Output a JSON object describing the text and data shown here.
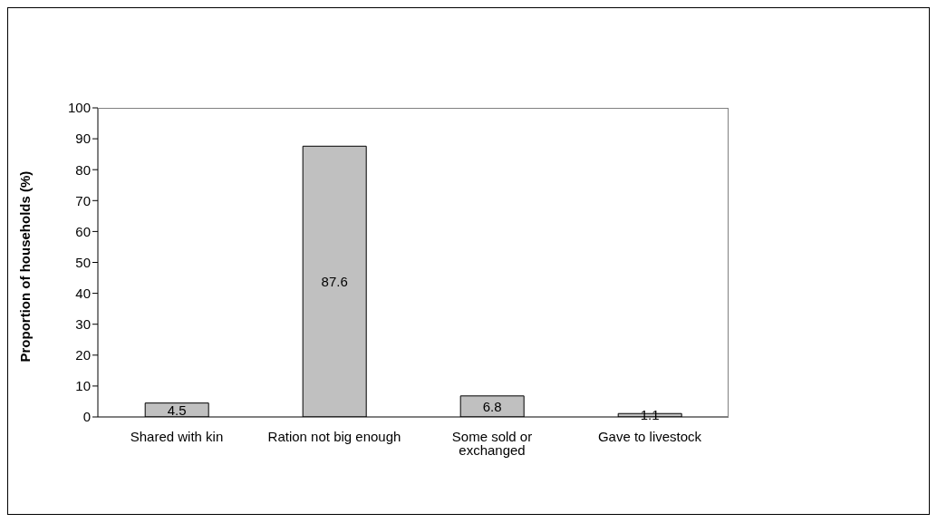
{
  "chart_data": {
    "type": "bar",
    "ylabel": "Proportion of households (%)",
    "categories": [
      "Shared with kin",
      "Ration not big enough",
      "Some sold or exchanged",
      "Gave to livestock"
    ],
    "values": [
      4.5,
      87.6,
      6.8,
      1.1
    ],
    "color": "#c0c0c0",
    "ylim": [
      0,
      100
    ],
    "yticks": [
      0,
      10,
      20,
      30,
      40,
      50,
      60,
      70,
      80,
      90,
      100
    ],
    "data_labels": true
  }
}
